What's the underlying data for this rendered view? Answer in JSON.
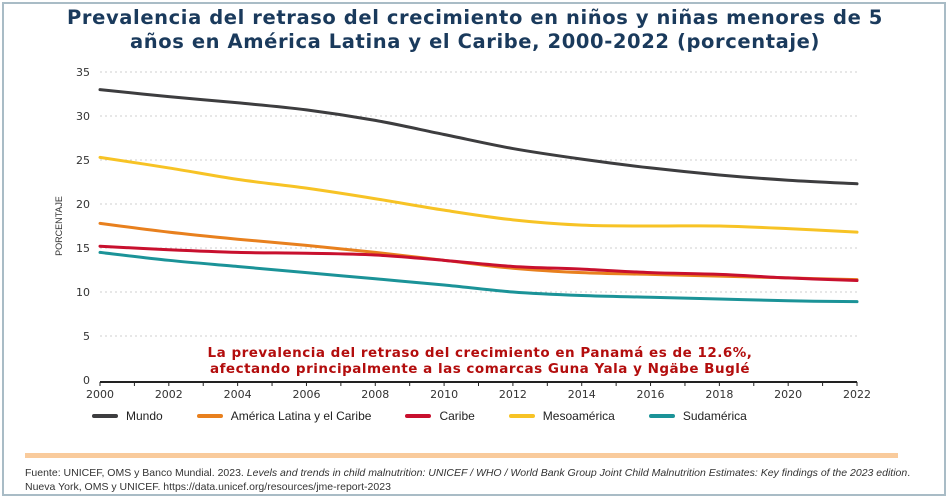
{
  "title_line1": "Prevalencia del retraso del crecimiento en niños y niñas menores de 5",
  "title_line2": "años en América Latina y el Caribe, 2000-2022 (porcentaje)",
  "annotation_line1": "La prevalencia del retraso del crecimiento en Panamá es de 12.6%,",
  "annotation_line2": "afectando principalmente a las comarcas Guna Yala y Ngäbe Buglé",
  "source_plain1": "Fuente: UNICEF, OMS y Banco Mundial. 2023. ",
  "source_italic": "Levels and trends in child malnutrition: UNICEF / WHO / World Bank Group Joint Child Malnutrition Estimates: Key findings of the 2023 edition",
  "source_plain2": ". Nueva York, OMS y UNICEF. https://data.unicef.org/resources/jme-report-2023",
  "chart_data": {
    "type": "line",
    "ylabel": "PORCENTAJE",
    "xlabel": "",
    "ylim": [
      0,
      35
    ],
    "xlim": [
      2000,
      2022
    ],
    "yticks": [
      0,
      5,
      10,
      15,
      20,
      25,
      30,
      35
    ],
    "xticks": [
      2000,
      2002,
      2004,
      2006,
      2008,
      2010,
      2012,
      2014,
      2016,
      2018,
      2020,
      2022
    ],
    "grid": "horizontal dotted",
    "legend_placement": "bottom",
    "x": [
      2000,
      2002,
      2004,
      2006,
      2008,
      2010,
      2012,
      2014,
      2016,
      2018,
      2020,
      2022
    ],
    "series": [
      {
        "name": "Mundo",
        "color": "#3d3d3f",
        "values": [
          33.0,
          32.2,
          31.5,
          30.7,
          29.5,
          27.9,
          26.3,
          25.1,
          24.1,
          23.3,
          22.7,
          22.3
        ]
      },
      {
        "name": "América Latina y el Caribe",
        "color": "#e8801e",
        "values": [
          17.8,
          16.8,
          16.0,
          15.3,
          14.5,
          13.6,
          12.7,
          12.2,
          12.0,
          11.8,
          11.6,
          11.4
        ]
      },
      {
        "name": "Caribe",
        "color": "#c8102e",
        "values": [
          15.2,
          14.8,
          14.5,
          14.4,
          14.2,
          13.6,
          12.9,
          12.6,
          12.2,
          12.0,
          11.6,
          11.3
        ]
      },
      {
        "name": "Mesoamérica",
        "color": "#f7c325",
        "values": [
          25.3,
          24.1,
          22.8,
          21.8,
          20.6,
          19.3,
          18.2,
          17.6,
          17.5,
          17.5,
          17.2,
          16.8
        ]
      },
      {
        "name": "Sudamérica",
        "color": "#1b9398",
        "values": [
          14.5,
          13.6,
          12.9,
          12.2,
          11.5,
          10.8,
          10.0,
          9.6,
          9.4,
          9.2,
          9.0,
          8.9
        ]
      }
    ]
  }
}
